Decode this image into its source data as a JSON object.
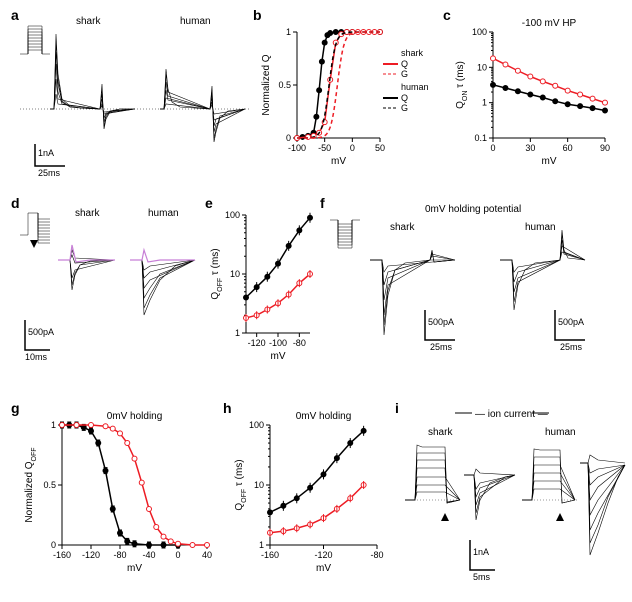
{
  "colors": {
    "shark": "#ed1c24",
    "human": "#000000",
    "pulse": "#c77fd6",
    "trace": "#000000",
    "axis": "#000000",
    "bg": "#ffffff"
  },
  "labels": {
    "shark": "shark",
    "human": "human"
  },
  "panels": {
    "a": {
      "label": "a",
      "shark_title": "shark",
      "human_title": "human",
      "scalebar": {
        "y": "1nA",
        "x": "25ms"
      }
    },
    "b": {
      "label": "b",
      "ylabel": "Normalized Q",
      "xlabel": "mV",
      "xlim": [
        -100,
        50
      ],
      "xticks": [
        -100,
        -50,
        0,
        50
      ],
      "ylim": [
        0,
        1
      ],
      "yticks": [
        0,
        0.5,
        1.0
      ],
      "legend": {
        "shark_Q": "Q",
        "shark_G": "G",
        "human_Q": "Q",
        "human_G": "G",
        "shark_hdr": "shark",
        "human_hdr": "human"
      },
      "shark_Q": {
        "x": [
          -100,
          -80,
          -70,
          -60,
          -50,
          -40,
          -30,
          -20,
          -10,
          0,
          10,
          20,
          30,
          40,
          50
        ],
        "y": [
          0,
          0.01,
          0.02,
          0.05,
          0.15,
          0.55,
          0.9,
          0.98,
          1,
          1,
          1,
          1,
          1,
          1,
          1
        ]
      },
      "human_Q": {
        "x": [
          -100,
          -90,
          -80,
          -70,
          -65,
          -60,
          -55,
          -50,
          -45,
          -40,
          -30,
          -20,
          -10,
          0,
          50
        ],
        "y": [
          0,
          0.01,
          0.02,
          0.05,
          0.2,
          0.45,
          0.72,
          0.9,
          0.97,
          0.99,
          1,
          1,
          1,
          1,
          1
        ]
      },
      "shark_G": {
        "v50": -27,
        "k": 6
      },
      "human_G": {
        "v50": -42,
        "k": 6
      }
    },
    "c": {
      "label": "c",
      "title": "-100 mV HP",
      "ylabel": "Q_ON τ (ms)",
      "xlabel": "mV",
      "xlim": [
        0,
        90
      ],
      "xticks": [
        0,
        30,
        60,
        90
      ],
      "ylim": [
        0.1,
        100
      ],
      "yticks": [
        0.1,
        1,
        10,
        100
      ],
      "shark": {
        "x": [
          0,
          10,
          20,
          30,
          40,
          50,
          60,
          70,
          80,
          90
        ],
        "y": [
          18,
          12,
          8,
          5.5,
          4,
          3,
          2.2,
          1.7,
          1.3,
          1.0
        ]
      },
      "human": {
        "x": [
          0,
          10,
          20,
          30,
          40,
          50,
          60,
          70,
          80,
          90
        ],
        "y": [
          3.2,
          2.6,
          2.1,
          1.7,
          1.4,
          1.1,
          0.9,
          0.8,
          0.7,
          0.6
        ]
      }
    },
    "d": {
      "label": "d",
      "scalebar": {
        "y": "500pA",
        "x": "10ms"
      }
    },
    "e": {
      "label": "e",
      "ylabel": "Q_OFF τ (ms)",
      "xlabel": "mV",
      "xlim": [
        -130,
        -70
      ],
      "xticks": [
        -120,
        -100,
        -80
      ],
      "ylim": [
        1,
        100
      ],
      "yticks": [
        1,
        10,
        100
      ],
      "shark": {
        "x": [
          -130,
          -120,
          -110,
          -100,
          -90,
          -80,
          -70
        ],
        "y": [
          1.8,
          2.0,
          2.5,
          3.2,
          4.5,
          7,
          10
        ]
      },
      "human": {
        "x": [
          -130,
          -120,
          -110,
          -100,
          -90,
          -80,
          -70
        ],
        "y": [
          4,
          6,
          9,
          15,
          30,
          55,
          90
        ]
      }
    },
    "f": {
      "label": "f",
      "title": "0mV holding potential",
      "scalebar": {
        "y": "500pA",
        "x": "25ms"
      }
    },
    "g": {
      "label": "g",
      "title": "0mV holding",
      "ylabel": "Normalized Q_OFF",
      "xlabel": "mV",
      "xlim": [
        -160,
        40
      ],
      "xticks": [
        -160,
        -120,
        -80,
        -40,
        0,
        40
      ],
      "ylim": [
        0,
        1
      ],
      "yticks": [
        0,
        0.5,
        1.0
      ],
      "shark": {
        "x": [
          -160,
          -140,
          -120,
          -100,
          -90,
          -80,
          -70,
          -60,
          -50,
          -40,
          -30,
          -20,
          -10,
          0,
          20,
          40
        ],
        "y": [
          1,
          1,
          1,
          0.99,
          0.97,
          0.93,
          0.85,
          0.72,
          0.52,
          0.3,
          0.15,
          0.07,
          0.03,
          0.01,
          0,
          0
        ]
      },
      "human": {
        "x": [
          -160,
          -150,
          -140,
          -130,
          -120,
          -110,
          -100,
          -90,
          -80,
          -70,
          -60,
          -40,
          -20,
          0
        ],
        "y": [
          1,
          1,
          1,
          0.98,
          0.95,
          0.85,
          0.62,
          0.3,
          0.1,
          0.03,
          0.01,
          0,
          0,
          0
        ]
      }
    },
    "h": {
      "label": "h",
      "title": "0mV holding",
      "ylabel": "Q_OFF τ (ms)",
      "xlabel": "mV",
      "xlim": [
        -160,
        -80
      ],
      "xticks": [
        -160,
        -120,
        -80
      ],
      "ylim": [
        1,
        100
      ],
      "yticks": [
        1,
        10,
        100
      ],
      "shark": {
        "x": [
          -160,
          -150,
          -140,
          -130,
          -120,
          -110,
          -100,
          -90
        ],
        "y": [
          1.6,
          1.7,
          1.9,
          2.2,
          2.8,
          4,
          6,
          10
        ]
      },
      "human": {
        "x": [
          -160,
          -150,
          -140,
          -130,
          -120,
          -110,
          -100,
          -90
        ],
        "y": [
          3.5,
          4.5,
          6,
          9,
          15,
          28,
          50,
          80
        ]
      }
    },
    "i": {
      "label": "i",
      "title": "— ion current —",
      "scalebar": {
        "y": "1nA",
        "x": "5ms"
      }
    }
  }
}
